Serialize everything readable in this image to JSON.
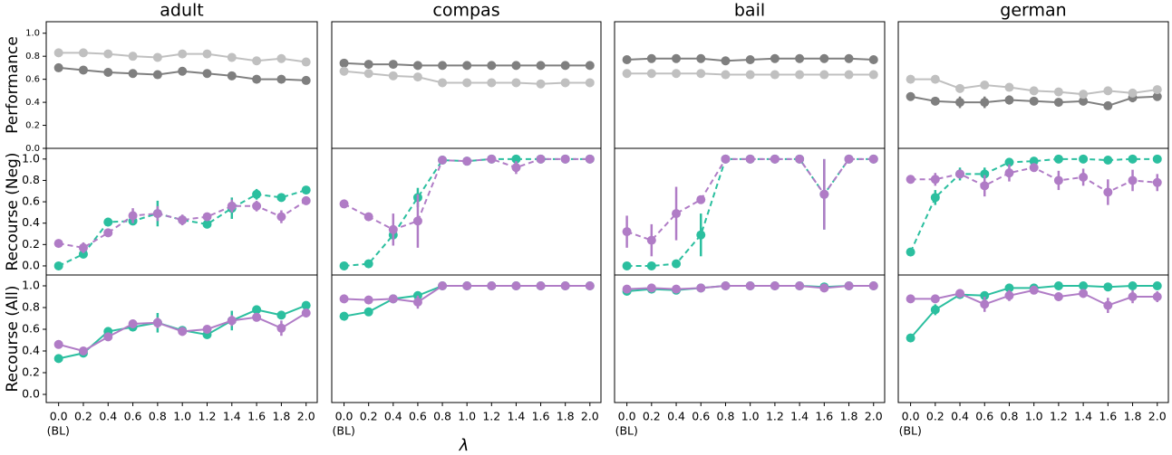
{
  "chart_data": [
    {
      "type": "line",
      "title": "adult",
      "ylabel": "Performance",
      "x": [
        0,
        0.2,
        0.4,
        0.6,
        0.8,
        1,
        1.2,
        1.4,
        1.6,
        1.8,
        2
      ],
      "xlim": [
        -0.1,
        2.09
      ],
      "ylim": [
        0,
        1.1
      ],
      "yticks": [
        {
          "value": 0,
          "label": "0.0"
        },
        0.2,
        0.4,
        0.6,
        0.8,
        {
          "value": 1,
          "label": "1.0"
        }
      ],
      "series": [
        {
          "color": "#7f7f7f",
          "values": [
            0.7,
            0.68,
            0.66,
            0.65,
            0.64,
            0.67,
            0.65,
            0.63,
            0.6,
            0.6,
            0.59
          ],
          "errors": [
            0,
            0,
            0,
            0,
            0,
            0,
            0,
            0,
            0,
            0,
            0
          ]
        },
        {
          "color": "#c0c0c0",
          "values": [
            0.83,
            0.83,
            0.82,
            0.8,
            0.79,
            0.82,
            0.82,
            0.79,
            0.76,
            0.78,
            0.75
          ],
          "errors": [
            0,
            0,
            0,
            0,
            0,
            0,
            0,
            0,
            0,
            0,
            0
          ]
        }
      ]
    },
    {
      "type": "line",
      "title": "compas",
      "x": [
        0,
        0.2,
        0.4,
        0.6,
        0.8,
        1,
        1.2,
        1.4,
        1.6,
        1.8,
        2
      ],
      "xlim": [
        -0.1,
        2.09
      ],
      "ylim": [
        0,
        1.1
      ],
      "series": [
        {
          "color": "#7f7f7f",
          "values": [
            0.74,
            0.73,
            0.73,
            0.72,
            0.72,
            0.72,
            0.72,
            0.72,
            0.72,
            0.72,
            0.72
          ],
          "errors": [
            0,
            0,
            0,
            0,
            0,
            0,
            0,
            0,
            0,
            0,
            0
          ]
        },
        {
          "color": "#c0c0c0",
          "values": [
            0.67,
            0.65,
            0.63,
            0.62,
            0.57,
            0.57,
            0.57,
            0.57,
            0.56,
            0.57,
            0.57
          ],
          "errors": [
            0,
            0,
            0,
            0,
            0,
            0,
            0,
            0,
            0,
            0,
            0
          ]
        }
      ]
    },
    {
      "type": "line",
      "title": "bail",
      "x": [
        0,
        0.2,
        0.4,
        0.6,
        0.8,
        1,
        1.2,
        1.4,
        1.6,
        1.8,
        2
      ],
      "xlim": [
        -0.1,
        2.09
      ],
      "ylim": [
        0,
        1.1
      ],
      "series": [
        {
          "color": "#7f7f7f",
          "values": [
            0.77,
            0.78,
            0.78,
            0.78,
            0.76,
            0.77,
            0.78,
            0.78,
            0.78,
            0.78,
            0.77
          ],
          "errors": [
            0,
            0,
            0,
            0,
            0,
            0,
            0,
            0,
            0,
            0,
            0
          ]
        },
        {
          "color": "#c0c0c0",
          "values": [
            0.65,
            0.65,
            0.65,
            0.65,
            0.64,
            0.64,
            0.64,
            0.64,
            0.64,
            0.64,
            0.64
          ],
          "errors": [
            0,
            0,
            0,
            0,
            0,
            0,
            0,
            0,
            0,
            0,
            0
          ]
        }
      ]
    },
    {
      "type": "line",
      "title": "german",
      "x": [
        0,
        0.2,
        0.4,
        0.6,
        0.8,
        1,
        1.2,
        1.4,
        1.6,
        1.8,
        2
      ],
      "xlim": [
        -0.1,
        2.09
      ],
      "ylim": [
        0,
        1.1
      ],
      "series": [
        {
          "color": "#7f7f7f",
          "values": [
            0.45,
            0.41,
            0.4,
            0.4,
            0.42,
            0.41,
            0.4,
            0.41,
            0.37,
            0.44,
            0.45
          ],
          "errors": [
            0.02,
            0.03,
            0.05,
            0.05,
            0.04,
            0.02,
            0.02,
            0.02,
            0.02,
            0.04,
            0.03
          ]
        },
        {
          "color": "#c0c0c0",
          "values": [
            0.6,
            0.6,
            0.52,
            0.55,
            0.53,
            0.5,
            0.49,
            0.47,
            0.5,
            0.48,
            0.51
          ],
          "errors": [
            0,
            0,
            0,
            0,
            0,
            0,
            0,
            0,
            0,
            0,
            0
          ]
        }
      ]
    },
    {
      "type": "line",
      "ylabel": "Recourse (Neg)",
      "dashed": true,
      "x": [
        0,
        0.2,
        0.4,
        0.6,
        0.8,
        1,
        1.2,
        1.4,
        1.6,
        1.8,
        2
      ],
      "xlim": [
        -0.1,
        2.09
      ],
      "ylim": [
        -0.085,
        1.1
      ],
      "yticks": [
        {
          "value": 0,
          "label": "0.0"
        },
        0.2,
        0.4,
        0.6,
        0.8,
        {
          "value": 1,
          "label": "1.0"
        }
      ],
      "series": [
        {
          "color": "#2bbf9f",
          "values": [
            0.0,
            0.11,
            0.41,
            0.42,
            0.49,
            0.43,
            0.39,
            0.54,
            0.67,
            0.64,
            0.71
          ],
          "errors": [
            0,
            0.03,
            0.04,
            0.03,
            0.12,
            0.04,
            0.03,
            0.1,
            0.05,
            0.03,
            0.03
          ]
        },
        {
          "color": "#b07cc6",
          "values": [
            0.21,
            0.17,
            0.31,
            0.47,
            0.49,
            0.43,
            0.46,
            0.56,
            0.56,
            0.46,
            0.61
          ],
          "errors": [
            0.02,
            0.05,
            0.03,
            0.07,
            0.07,
            0.05,
            0.03,
            0.06,
            0.05,
            0.06,
            0.04
          ]
        }
      ]
    },
    {
      "type": "line",
      "dashed": true,
      "x": [
        0,
        0.2,
        0.4,
        0.6,
        0.8,
        1,
        1.2,
        1.4,
        1.6,
        1.8,
        2
      ],
      "xlim": [
        -0.1,
        2.09
      ],
      "ylim": [
        -0.085,
        1.1
      ],
      "series": [
        {
          "color": "#2bbf9f",
          "values": [
            0,
            0.02,
            0.29,
            0.64,
            0.99,
            0.98,
            1,
            1,
            1,
            1,
            1
          ],
          "errors": [
            0,
            0,
            0.03,
            0.09,
            0,
            0,
            0,
            0,
            0,
            0,
            0
          ]
        },
        {
          "color": "#b07cc6",
          "values": [
            0.58,
            0.46,
            0.34,
            0.42,
            0.99,
            0.98,
            1,
            0.92,
            1,
            1,
            1
          ],
          "errors": [
            0.02,
            0.02,
            0.15,
            0.25,
            0,
            0.02,
            0,
            0.06,
            0,
            0,
            0
          ]
        }
      ]
    },
    {
      "type": "line",
      "dashed": true,
      "x": [
        0,
        0.2,
        0.4,
        0.6,
        0.8,
        1,
        1.2,
        1.4,
        1.6,
        1.8,
        2
      ],
      "xlim": [
        -0.1,
        2.09
      ],
      "ylim": [
        -0.085,
        1.1
      ],
      "series": [
        {
          "color": "#2bbf9f",
          "values": [
            0,
            0,
            0.02,
            0.29,
            1,
            1,
            1,
            1,
            0.67,
            1,
            1
          ],
          "errors": [
            0,
            0,
            0,
            0.2,
            0,
            0,
            0,
            0,
            0.33,
            0,
            0
          ]
        },
        {
          "color": "#b07cc6",
          "values": [
            0.32,
            0.24,
            0.49,
            0.62,
            1,
            1,
            1,
            1,
            0.67,
            1,
            1
          ],
          "errors": [
            0.15,
            0.15,
            0.25,
            0.03,
            0,
            0,
            0,
            0,
            0.33,
            0,
            0
          ]
        }
      ]
    },
    {
      "type": "line",
      "dashed": true,
      "x": [
        0,
        0.2,
        0.4,
        0.6,
        0.8,
        1,
        1.2,
        1.4,
        1.6,
        1.8,
        2
      ],
      "xlim": [
        -0.1,
        2.09
      ],
      "ylim": [
        -0.085,
        1.1
      ],
      "series": [
        {
          "color": "#2bbf9f",
          "values": [
            0.13,
            0.64,
            0.86,
            0.86,
            0.97,
            0.98,
            1,
            1,
            0.99,
            1,
            1
          ],
          "errors": [
            0.02,
            0.07,
            0.06,
            0.06,
            0.02,
            0.02,
            0,
            0,
            0.01,
            0,
            0
          ]
        },
        {
          "color": "#b07cc6",
          "values": [
            0.81,
            0.81,
            0.86,
            0.75,
            0.87,
            0.92,
            0.8,
            0.83,
            0.69,
            0.8,
            0.78
          ],
          "errors": [
            0.04,
            0.06,
            0.04,
            0.1,
            0.08,
            0.04,
            0.09,
            0.08,
            0.12,
            0.1,
            0.08
          ]
        }
      ]
    },
    {
      "type": "line",
      "ylabel": "Recourse (All)",
      "x": [
        0,
        0.2,
        0.4,
        0.6,
        0.8,
        1,
        1.2,
        1.4,
        1.6,
        1.8,
        2
      ],
      "xlim": [
        -0.1,
        2.09
      ],
      "ylim": [
        -0.075,
        1.1
      ],
      "yticks": [
        {
          "value": 0,
          "label": "0.0"
        },
        0.2,
        0.4,
        0.6,
        0.8,
        {
          "value": 1,
          "label": "1.0"
        }
      ],
      "xticks": [
        {
          "value": 0,
          "label": "0.0"
        },
        0.2,
        0.4,
        0.6,
        0.8,
        {
          "value": 1,
          "label": "1.0"
        },
        1.2,
        1.4,
        1.6,
        1.8,
        {
          "value": 2,
          "label": "2.0"
        }
      ],
      "baseline_note": "(BL)",
      "series": [
        {
          "color": "#2bbf9f",
          "values": [
            0.33,
            0.38,
            0.58,
            0.62,
            0.66,
            0.59,
            0.55,
            0.68,
            0.78,
            0.73,
            0.82
          ],
          "errors": [
            0.02,
            0.02,
            0.03,
            0.03,
            0.09,
            0.03,
            0.02,
            0.09,
            0.04,
            0.02,
            0.02
          ]
        },
        {
          "color": "#b07cc6",
          "values": [
            0.46,
            0.4,
            0.53,
            0.65,
            0.66,
            0.58,
            0.6,
            0.68,
            0.71,
            0.61,
            0.75
          ],
          "errors": [
            0.02,
            0.03,
            0.02,
            0.04,
            0.05,
            0.04,
            0.02,
            0.05,
            0.04,
            0.07,
            0.04
          ]
        }
      ]
    },
    {
      "type": "line",
      "xlabel": "λ",
      "x": [
        0,
        0.2,
        0.4,
        0.6,
        0.8,
        1,
        1.2,
        1.4,
        1.6,
        1.8,
        2
      ],
      "xlim": [
        -0.1,
        2.09
      ],
      "ylim": [
        -0.075,
        1.1
      ],
      "xticks": [
        {
          "value": 0,
          "label": "0.0"
        },
        0.2,
        0.4,
        0.6,
        0.8,
        {
          "value": 1,
          "label": "1.0"
        },
        1.2,
        1.4,
        1.6,
        1.8,
        {
          "value": 2,
          "label": "2.0"
        }
      ],
      "baseline_note": "(BL)",
      "series": [
        {
          "color": "#2bbf9f",
          "values": [
            0.72,
            0.76,
            0.88,
            0.91,
            1,
            1,
            1,
            1,
            1,
            1,
            1
          ],
          "errors": [
            0.01,
            0.01,
            0.02,
            0.04,
            0,
            0,
            0,
            0,
            0,
            0,
            0
          ]
        },
        {
          "color": "#b07cc6",
          "values": [
            0.88,
            0.87,
            0.88,
            0.85,
            1,
            1,
            1,
            1,
            1,
            1,
            1
          ],
          "errors": [
            0.01,
            0.01,
            0.02,
            0.06,
            0,
            0,
            0,
            0,
            0,
            0,
            0
          ]
        }
      ]
    },
    {
      "type": "line",
      "x": [
        0,
        0.2,
        0.4,
        0.6,
        0.8,
        1,
        1.2,
        1.4,
        1.6,
        1.8,
        2
      ],
      "xlim": [
        -0.1,
        2.09
      ],
      "ylim": [
        -0.075,
        1.1
      ],
      "xticks": [
        {
          "value": 0,
          "label": "0.0"
        },
        0.2,
        0.4,
        0.6,
        0.8,
        {
          "value": 1,
          "label": "1.0"
        },
        1.2,
        1.4,
        1.6,
        1.8,
        {
          "value": 2,
          "label": "2.0"
        }
      ],
      "baseline_note": "(BL)",
      "series": [
        {
          "color": "#2bbf9f",
          "values": [
            0.95,
            0.97,
            0.96,
            0.98,
            1,
            1,
            1,
            1,
            0.99,
            1,
            1
          ],
          "errors": [
            0,
            0,
            0,
            0,
            0,
            0,
            0,
            0,
            0,
            0,
            0
          ]
        },
        {
          "color": "#b07cc6",
          "values": [
            0.97,
            0.98,
            0.97,
            0.98,
            1,
            1,
            1,
            1,
            0.98,
            1,
            1
          ],
          "errors": [
            0.01,
            0.01,
            0.01,
            0.01,
            0,
            0,
            0,
            0,
            0.01,
            0,
            0
          ]
        }
      ]
    },
    {
      "type": "line",
      "x": [
        0,
        0.2,
        0.4,
        0.6,
        0.8,
        1,
        1.2,
        1.4,
        1.6,
        1.8,
        2
      ],
      "xlim": [
        -0.1,
        2.09
      ],
      "ylim": [
        -0.075,
        1.1
      ],
      "xticks": [
        {
          "value": 0,
          "label": "0.0"
        },
        0.2,
        0.4,
        0.6,
        0.8,
        {
          "value": 1,
          "label": "1.0"
        },
        1.2,
        1.4,
        1.6,
        1.8,
        {
          "value": 2,
          "label": "2.0"
        }
      ],
      "baseline_note": "(BL)",
      "series": [
        {
          "color": "#2bbf9f",
          "values": [
            0.52,
            0.78,
            0.92,
            0.91,
            0.98,
            0.98,
            1,
            1,
            0.99,
            1,
            1
          ],
          "errors": [
            0.01,
            0.05,
            0.03,
            0.04,
            0.01,
            0.01,
            0,
            0,
            0.01,
            0,
            0
          ]
        },
        {
          "color": "#b07cc6",
          "values": [
            0.88,
            0.88,
            0.93,
            0.83,
            0.91,
            0.96,
            0.9,
            0.93,
            0.82,
            0.9,
            0.9
          ],
          "errors": [
            0.01,
            0.03,
            0.02,
            0.07,
            0.05,
            0.03,
            0.04,
            0.04,
            0.07,
            0.06,
            0.05
          ]
        }
      ]
    }
  ]
}
